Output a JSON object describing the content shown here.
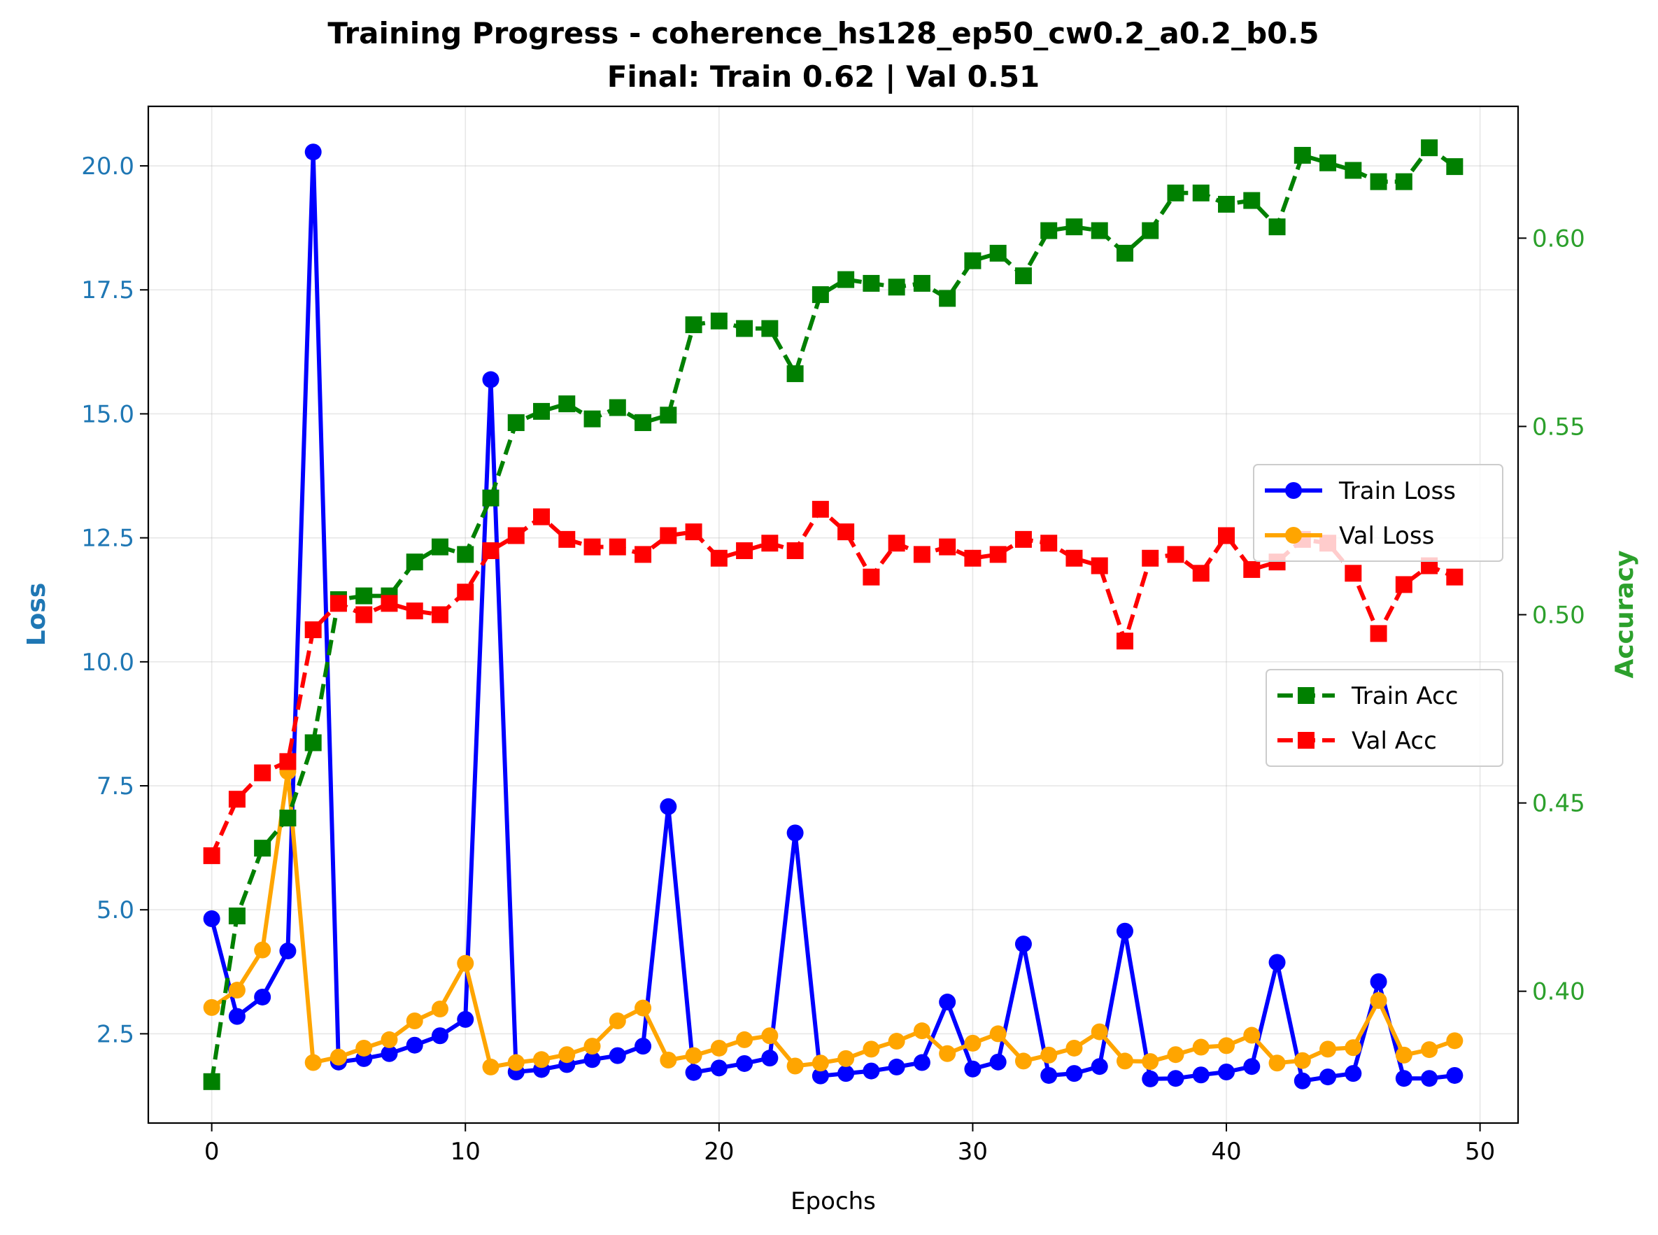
{
  "chart_data": {
    "type": "line",
    "title": "Training Progress - coherence_hs128_ep50_cw0.2_a0.2_b0.5",
    "subtitle": "Final: Train 0.62 | Val 0.51",
    "xlabel": "Epochs",
    "ylabel_left": "Loss",
    "ylabel_right": "Accuracy",
    "xlim": [
      -2.5,
      51.5
    ],
    "ylim_left": [
      0.7,
      21.2
    ],
    "ylim_right": [
      0.365,
      0.635
    ],
    "x_ticks": [
      0,
      10,
      20,
      30,
      40,
      50
    ],
    "y_ticks_left": [
      2.5,
      5.0,
      7.5,
      10.0,
      12.5,
      15.0,
      17.5,
      20.0
    ],
    "y_ticks_right": [
      0.4,
      0.45,
      0.5,
      0.55,
      0.6
    ],
    "grid": true,
    "colors": {
      "left_axis": "#1f77b4",
      "right_axis": "#2ca02c",
      "train_loss": "#0000ff",
      "val_loss": "#ffa500",
      "train_acc": "#008000",
      "val_acc": "#ff0000"
    },
    "legend_loss": {
      "placement": "center-right",
      "entries": [
        "Train Loss",
        "Val Loss"
      ]
    },
    "legend_acc": {
      "placement": "center-right",
      "entries": [
        "Train Acc",
        "Val Acc"
      ]
    },
    "x": [
      0,
      1,
      2,
      3,
      4,
      5,
      6,
      7,
      8,
      9,
      10,
      11,
      12,
      13,
      14,
      15,
      16,
      17,
      18,
      19,
      20,
      21,
      22,
      23,
      24,
      25,
      26,
      27,
      28,
      29,
      30,
      31,
      32,
      33,
      34,
      35,
      36,
      37,
      38,
      39,
      40,
      41,
      42,
      43,
      44,
      45,
      46,
      47,
      48,
      49
    ],
    "series": [
      {
        "name": "Train Loss",
        "axis": "left",
        "style": "solid",
        "marker": "circle",
        "color_key": "train_loss",
        "values": [
          4.82,
          2.85,
          3.24,
          4.17,
          20.28,
          1.93,
          2.0,
          2.1,
          2.27,
          2.46,
          2.79,
          15.69,
          1.73,
          1.78,
          1.88,
          1.98,
          2.06,
          2.25,
          7.08,
          1.72,
          1.81,
          1.9,
          2.01,
          6.55,
          1.65,
          1.7,
          1.75,
          1.83,
          1.92,
          3.14,
          1.79,
          1.93,
          4.31,
          1.66,
          1.7,
          1.84,
          4.57,
          1.59,
          1.6,
          1.67,
          1.73,
          1.84,
          3.94,
          1.55,
          1.63,
          1.7,
          3.55,
          1.6,
          1.6,
          1.66
        ]
      },
      {
        "name": "Val Loss",
        "axis": "left",
        "style": "solid",
        "marker": "circle",
        "color_key": "val_loss",
        "values": [
          3.03,
          3.38,
          4.19,
          7.79,
          1.92,
          2.03,
          2.21,
          2.38,
          2.76,
          3.0,
          3.92,
          1.83,
          1.92,
          1.98,
          2.08,
          2.25,
          2.76,
          3.02,
          1.97,
          2.06,
          2.21,
          2.38,
          2.46,
          1.85,
          1.91,
          2.0,
          2.19,
          2.35,
          2.56,
          2.1,
          2.31,
          2.5,
          1.95,
          2.07,
          2.21,
          2.54,
          1.95,
          1.94,
          2.08,
          2.23,
          2.26,
          2.47,
          1.91,
          1.96,
          2.19,
          2.22,
          3.17,
          2.07,
          2.18,
          2.36
        ]
      },
      {
        "name": "Train Acc",
        "axis": "right",
        "style": "dashed",
        "marker": "square",
        "color_key": "train_acc",
        "values": [
          0.376,
          0.42,
          0.438,
          0.446,
          0.466,
          0.504,
          0.505,
          0.505,
          0.514,
          0.518,
          0.516,
          0.531,
          0.551,
          0.554,
          0.556,
          0.552,
          0.555,
          0.551,
          0.553,
          0.577,
          0.578,
          0.576,
          0.576,
          0.564,
          0.585,
          0.589,
          0.588,
          0.587,
          0.588,
          0.584,
          0.594,
          0.596,
          0.59,
          0.602,
          0.603,
          0.602,
          0.596,
          0.602,
          0.612,
          0.612,
          0.609,
          0.61,
          0.603,
          0.622,
          0.62,
          0.618,
          0.615,
          0.615,
          0.624,
          0.619
        ]
      },
      {
        "name": "Val Acc",
        "axis": "right",
        "style": "dashed",
        "marker": "square",
        "color_key": "val_acc",
        "values": [
          0.436,
          0.451,
          0.458,
          0.461,
          0.496,
          0.503,
          0.5,
          0.503,
          0.501,
          0.5,
          0.506,
          0.517,
          0.521,
          0.526,
          0.52,
          0.518,
          0.518,
          0.516,
          0.521,
          0.522,
          0.515,
          0.517,
          0.519,
          0.517,
          0.528,
          0.522,
          0.51,
          0.519,
          0.516,
          0.518,
          0.515,
          0.516,
          0.52,
          0.519,
          0.515,
          0.513,
          0.493,
          0.515,
          0.516,
          0.511,
          0.521,
          0.512,
          0.514,
          0.52,
          0.519,
          0.511,
          0.495,
          0.508,
          0.513,
          0.51
        ]
      }
    ]
  }
}
